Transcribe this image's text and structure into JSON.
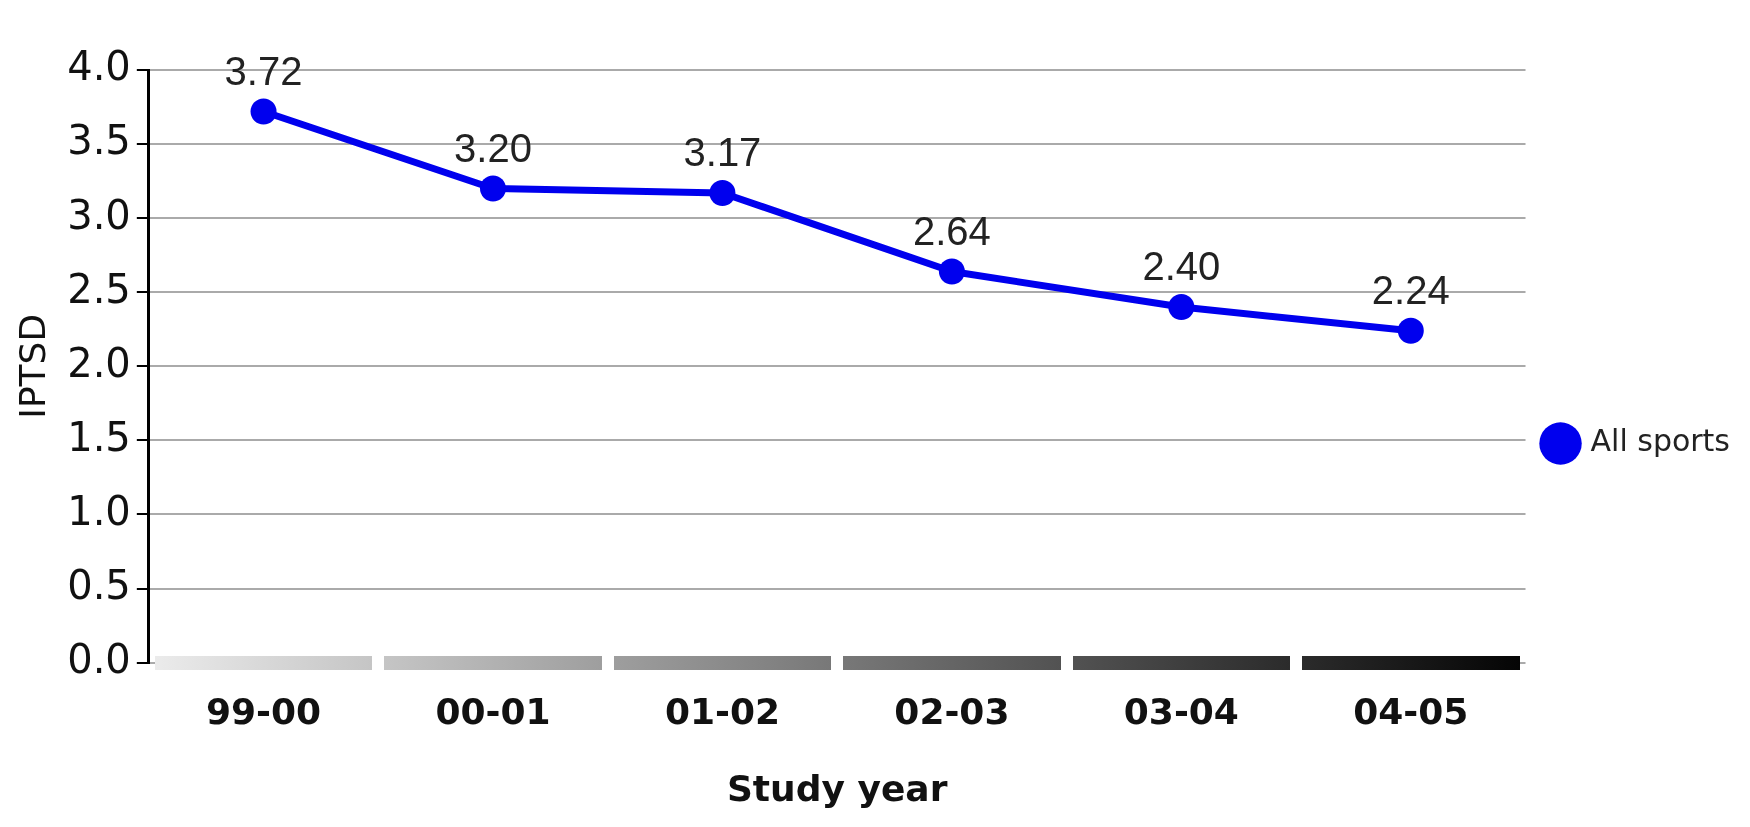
{
  "chart_data": {
    "type": "line",
    "xlabel": "Study year",
    "ylabel": "IPTSD",
    "categories": [
      "99-00",
      "00-01",
      "01-02",
      "02-03",
      "03-04",
      "04-05"
    ],
    "series": [
      {
        "name": "All sports",
        "color": "#0000ee",
        "values": [
          3.72,
          3.2,
          3.17,
          2.64,
          2.4,
          2.24
        ]
      }
    ],
    "ylim": [
      0,
      4
    ],
    "yticks": [
      {
        "value": 0,
        "label": "0.0"
      },
      {
        "value": 0.5,
        "label": "0.5"
      },
      {
        "value": 1,
        "label": "1.0"
      },
      {
        "value": 1.5,
        "label": "1.5"
      },
      {
        "value": 2,
        "label": "2.0"
      },
      {
        "value": 2.5,
        "label": "2.5"
      },
      {
        "value": 3,
        "label": "3.0"
      },
      {
        "value": 3.5,
        "label": "3.5"
      },
      {
        "value": 4,
        "label": "4.0"
      }
    ],
    "grid": "y",
    "legend": "right",
    "marker": "circle",
    "line_style": "solid",
    "value_labels": [
      "3.72",
      "3.20",
      "3.17",
      "2.64",
      "2.40",
      "2.24"
    ]
  }
}
